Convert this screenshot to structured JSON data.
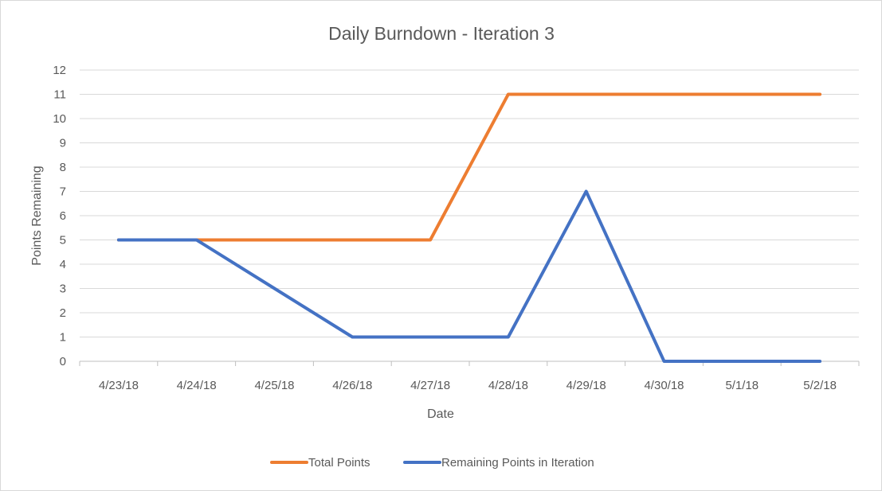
{
  "chart_data": {
    "type": "line",
    "title": "Daily Burndown - Iteration 3",
    "xlabel": "Date",
    "ylabel": "Points Remaining",
    "categories": [
      "4/23/18",
      "4/24/18",
      "4/25/18",
      "4/26/18",
      "4/27/18",
      "4/28/18",
      "4/29/18",
      "4/30/18",
      "5/1/18",
      "5/2/18"
    ],
    "y_ticks": [
      "0",
      "1",
      "2",
      "3",
      "4",
      "5",
      "6",
      "7",
      "8",
      "9",
      "10",
      "11",
      "12"
    ],
    "ylim": [
      0,
      12
    ],
    "grid": true,
    "legend_position": "bottom",
    "series": [
      {
        "name": "Total Points",
        "color": "#ED7D31",
        "values": [
          5,
          5,
          5,
          5,
          5,
          11,
          11,
          11,
          11,
          11
        ]
      },
      {
        "name": "Remaining Points in Iteration",
        "color": "#4472C4",
        "values": [
          5,
          5,
          3,
          1,
          1,
          1,
          7,
          0,
          0,
          0
        ]
      }
    ]
  }
}
